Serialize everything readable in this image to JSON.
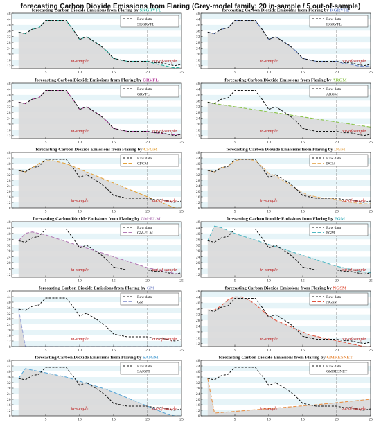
{
  "figure_title": "forecasting Carbon Dioxide Emissions from Flaring (Grey-model family; 20 in-sample / 5 out-of-sample)",
  "annotations": {
    "in_sample": "in-sample",
    "out_sample": "out-of-sample"
  },
  "colors": {
    "raw": "#111111",
    "fill": "#d9d9d9",
    "band": "#e6f4f8",
    "split": "#777777"
  },
  "chart_data": [
    {
      "type": "line",
      "title_prefix": "forecasting Carbon Dioxide Emissions from Flaring by ",
      "model": "SKGRVFL",
      "color": "#2bb3a0",
      "legend": [
        "Raw data",
        "SKGRVFL"
      ],
      "x": [
        1,
        2,
        3,
        4,
        5,
        6,
        7,
        8,
        9,
        10,
        11,
        12,
        13,
        14,
        15,
        16,
        17,
        18,
        19,
        20,
        21,
        22,
        23,
        24,
        25
      ],
      "raw": [
        35,
        34,
        37,
        38,
        43,
        43,
        43,
        43,
        37,
        30,
        32,
        29,
        26,
        22,
        17,
        16,
        15,
        15,
        15,
        15,
        14,
        14,
        13,
        12,
        13
      ],
      "fit": [
        35,
        34,
        37,
        38,
        43,
        43,
        43,
        43,
        37,
        30,
        32,
        29,
        26,
        22,
        17,
        16,
        15,
        15,
        15,
        15,
        13.5,
        12.5,
        11.5,
        10.5,
        11
      ],
      "xlim": [
        0,
        25
      ],
      "ylim": [
        10,
        48
      ],
      "yticks": [
        12,
        16,
        20,
        24,
        28,
        32,
        36,
        40,
        44,
        48
      ],
      "xticks": [
        5,
        10,
        15,
        20,
        25
      ],
      "split_at": 20
    },
    {
      "type": "line",
      "title_prefix": "forecasting Carbon Dioxide Emissions from Flaring by ",
      "model": "KGRVFL",
      "color": "#6a85c8",
      "legend": [
        "Raw data",
        "KGRVFL"
      ],
      "x": [
        1,
        2,
        3,
        4,
        5,
        6,
        7,
        8,
        9,
        10,
        11,
        12,
        13,
        14,
        15,
        16,
        17,
        18,
        19,
        20,
        21,
        22,
        23,
        24,
        25
      ],
      "raw": [
        35,
        34,
        37,
        38,
        43,
        43,
        43,
        43,
        37,
        30,
        32,
        29,
        26,
        22,
        17,
        16,
        15,
        15,
        15,
        15,
        14,
        14,
        13,
        12,
        13
      ],
      "fit": [
        35,
        34,
        37,
        38,
        43,
        43,
        43,
        43,
        37,
        30,
        32,
        29,
        26,
        22,
        17,
        16,
        15,
        15,
        15,
        15,
        13.5,
        13,
        12,
        11.5,
        12
      ],
      "xlim": [
        0,
        25
      ],
      "ylim": [
        10,
        48
      ],
      "yticks": [
        12,
        16,
        20,
        24,
        28,
        32,
        36,
        40,
        44,
        48
      ],
      "xticks": [
        5,
        10,
        15,
        20,
        25
      ],
      "split_at": 20
    },
    {
      "type": "line",
      "title_prefix": "forecasting Carbon Dioxide Emissions from Flaring by ",
      "model": "GRVFL",
      "color": "#b5439e",
      "legend": [
        "Raw data",
        "GRVFL"
      ],
      "x": [
        1,
        2,
        3,
        4,
        5,
        6,
        7,
        8,
        9,
        10,
        11,
        12,
        13,
        14,
        15,
        16,
        17,
        18,
        19,
        20,
        21,
        22,
        23,
        24,
        25
      ],
      "raw": [
        35,
        34,
        37,
        38,
        43,
        43,
        43,
        43,
        37,
        30,
        32,
        29,
        26,
        22,
        17,
        16,
        15,
        15,
        15,
        15,
        14,
        14,
        13,
        12,
        13
      ],
      "fit": [
        35,
        34,
        37,
        38,
        43,
        43,
        43,
        43,
        37,
        30,
        32,
        29,
        26,
        22,
        17,
        16,
        15,
        15,
        15,
        15,
        14,
        13.5,
        13,
        12.5,
        13
      ],
      "xlim": [
        0,
        25
      ],
      "ylim": [
        10,
        48
      ],
      "yticks": [
        12,
        16,
        20,
        24,
        28,
        32,
        36,
        40,
        44,
        48
      ],
      "xticks": [
        5,
        10,
        15,
        20,
        25
      ],
      "split_at": 20
    },
    {
      "type": "line",
      "title_prefix": "forecasting Carbon Dioxide Emissions from Flaring by ",
      "model": "ARGM",
      "color": "#8bc34a",
      "legend": [
        "Raw data",
        "ARGM"
      ],
      "x": [
        1,
        2,
        3,
        4,
        5,
        6,
        7,
        8,
        9,
        10,
        11,
        12,
        13,
        14,
        15,
        16,
        17,
        18,
        19,
        20,
        21,
        22,
        23,
        24,
        25
      ],
      "raw": [
        35,
        34,
        37,
        38,
        43,
        43,
        43,
        43,
        37,
        30,
        32,
        29,
        26,
        22,
        17,
        16,
        15,
        15,
        15,
        15,
        14,
        14,
        13,
        12,
        13
      ],
      "fit": [
        35,
        34,
        33.3,
        32.6,
        31.9,
        31.2,
        30.5,
        29.8,
        29.1,
        28.4,
        27.7,
        27,
        26.3,
        25.6,
        24.9,
        24.2,
        23.5,
        22.8,
        22.1,
        21.4,
        20.7,
        20,
        19.3,
        18.6,
        17.9
      ],
      "xlim": [
        0,
        25
      ],
      "ylim": [
        10,
        48
      ],
      "yticks": [
        12,
        16,
        20,
        24,
        28,
        32,
        36,
        40,
        44,
        48
      ],
      "xticks": [
        5,
        10,
        15,
        20,
        25
      ],
      "split_at": 20
    },
    {
      "type": "line",
      "title_prefix": "forecasting Carbon Dioxide Emissions from Flaring by ",
      "model": "CFGM",
      "color": "#e3a23b",
      "legend": [
        "Raw data",
        "CFGM"
      ],
      "x": [
        1,
        2,
        3,
        4,
        5,
        6,
        7,
        8,
        9,
        10,
        11,
        12,
        13,
        14,
        15,
        16,
        17,
        18,
        19,
        20,
        21,
        22,
        23,
        24,
        25
      ],
      "raw": [
        35,
        34,
        37,
        38,
        43,
        43,
        43,
        43,
        37,
        30,
        32,
        29,
        26,
        22,
        17,
        16,
        15,
        15,
        15,
        15,
        14,
        14,
        13,
        12,
        13
      ],
      "fit": [
        35,
        34,
        37,
        40,
        42,
        42,
        41,
        40,
        38,
        36,
        34,
        32,
        30,
        28,
        26,
        24,
        22,
        20,
        18,
        16,
        14,
        12,
        10,
        8,
        6
      ],
      "xlim": [
        0,
        25
      ],
      "ylim": [
        8,
        48
      ],
      "yticks": [
        8,
        12,
        16,
        20,
        24,
        28,
        32,
        36,
        40,
        44,
        48
      ],
      "xticks": [
        5,
        10,
        15,
        20,
        25
      ],
      "split_at": 20
    },
    {
      "type": "line",
      "title_prefix": "forecasting Carbon Dioxide Emissions from Flaring by ",
      "model": "DGM",
      "color": "#e8b46a",
      "legend": [
        "Raw data",
        "DGM"
      ],
      "x": [
        1,
        2,
        3,
        4,
        5,
        6,
        7,
        8,
        9,
        10,
        11,
        12,
        13,
        14,
        15,
        16,
        17,
        18,
        19,
        20,
        21,
        22,
        23,
        24,
        25
      ],
      "raw": [
        35,
        34,
        37,
        38,
        43,
        43,
        43,
        43,
        37,
        30,
        32,
        29,
        26,
        22,
        17,
        16,
        15,
        15,
        15,
        15,
        14,
        14,
        13,
        12,
        13
      ],
      "fit": [
        35,
        34,
        37,
        38,
        42,
        43,
        43,
        42,
        38,
        33,
        31,
        28,
        25,
        22,
        19,
        17,
        16,
        15,
        15,
        14,
        13,
        12,
        11.5,
        11,
        11
      ],
      "xlim": [
        0,
        25
      ],
      "ylim": [
        8,
        48
      ],
      "yticks": [
        8,
        12,
        16,
        20,
        24,
        28,
        32,
        36,
        40,
        44,
        48
      ],
      "xticks": [
        5,
        10,
        15,
        20,
        25
      ],
      "split_at": 20
    },
    {
      "type": "line",
      "title_prefix": "forecasting Carbon Dioxide Emissions from Flaring by ",
      "model": "GM-ELM",
      "color": "#b37bb6",
      "legend": [
        "Raw data",
        "GM-ELM"
      ],
      "x": [
        1,
        2,
        3,
        4,
        5,
        6,
        7,
        8,
        9,
        10,
        11,
        12,
        13,
        14,
        15,
        16,
        17,
        18,
        19,
        20,
        21,
        22,
        23,
        24,
        25
      ],
      "raw": [
        35,
        34,
        37,
        38,
        43,
        43,
        43,
        43,
        37,
        30,
        32,
        29,
        26,
        22,
        17,
        16,
        15,
        15,
        15,
        15,
        14,
        14,
        13,
        12,
        13
      ],
      "fit": [
        35,
        40,
        41,
        40,
        39,
        37.5,
        36,
        34.5,
        33,
        31.5,
        30,
        28.5,
        27,
        25.5,
        24,
        22.5,
        21,
        19.5,
        18,
        16.5,
        15.5,
        14.5,
        13.5,
        12.5,
        12
      ],
      "xlim": [
        0,
        25
      ],
      "ylim": [
        10,
        48
      ],
      "yticks": [
        12,
        16,
        20,
        24,
        28,
        32,
        36,
        40,
        44,
        48
      ],
      "xticks": [
        5,
        10,
        15,
        20,
        25
      ],
      "split_at": 20
    },
    {
      "type": "line",
      "title_prefix": "forecasting Carbon Dioxide Emissions from Flaring by ",
      "model": "FGM",
      "color": "#4fb7c2",
      "legend": [
        "Raw data",
        "FGM"
      ],
      "x": [
        1,
        2,
        3,
        4,
        5,
        6,
        7,
        8,
        9,
        10,
        11,
        12,
        13,
        14,
        15,
        16,
        17,
        18,
        19,
        20,
        21,
        22,
        23,
        24,
        25
      ],
      "raw": [
        35,
        34,
        37,
        38,
        43,
        43,
        43,
        43,
        37,
        30,
        32,
        29,
        26,
        22,
        17,
        16,
        15,
        15,
        15,
        15,
        14,
        14,
        13,
        12,
        13
      ],
      "fit": [
        35,
        45,
        44,
        42,
        40,
        38.5,
        37,
        35.5,
        34,
        32.5,
        31,
        29.5,
        28,
        26.5,
        25,
        23.5,
        22,
        20.5,
        19,
        17.5,
        16.5,
        15.5,
        14.5,
        13.5,
        13
      ],
      "xlim": [
        0,
        25
      ],
      "ylim": [
        10,
        48
      ],
      "yticks": [
        12,
        16,
        20,
        24,
        28,
        32,
        36,
        40,
        44,
        48
      ],
      "xticks": [
        5,
        10,
        15,
        20,
        25
      ],
      "split_at": 20
    },
    {
      "type": "line",
      "title_prefix": "forecasting Carbon Dioxide Emissions from Flaring by ",
      "model": "GM",
      "color": "#9aa4d6",
      "legend": [
        "Raw data",
        "GM"
      ],
      "x": [
        1,
        2,
        3,
        4,
        5,
        6,
        7,
        8,
        9,
        10,
        11,
        12,
        13,
        14,
        15,
        16,
        17,
        18,
        19,
        20,
        21,
        22,
        23,
        24,
        25
      ],
      "raw": [
        35,
        34,
        37,
        38,
        43,
        43,
        43,
        43,
        37,
        30,
        32,
        29,
        26,
        22,
        17,
        16,
        15,
        15,
        15,
        15,
        14,
        14,
        13,
        12,
        13
      ],
      "fit": [
        35,
        1,
        0.5,
        0.3,
        0.2,
        0.1,
        0.1,
        0.1,
        0.1,
        0.1,
        0.1,
        0.1,
        0.1,
        0.1,
        0.1,
        0.1,
        0.1,
        0.1,
        0.1,
        0.1,
        0.1,
        0.1,
        0.1,
        0.1,
        0.1
      ],
      "xlim": [
        0,
        25
      ],
      "ylim": [
        8,
        48
      ],
      "yticks": [
        8,
        12,
        16,
        20,
        24,
        28,
        32,
        36,
        40,
        44,
        48
      ],
      "xticks": [
        5,
        10,
        15,
        20,
        25
      ],
      "split_at": 20
    },
    {
      "type": "line",
      "title_prefix": "forecasting Carbon Dioxide Emissions from Flaring by ",
      "model": "NGSM",
      "color": "#e0533d",
      "legend": [
        "Raw data",
        "NGSM"
      ],
      "x": [
        1,
        2,
        3,
        4,
        5,
        6,
        7,
        8,
        9,
        10,
        11,
        12,
        13,
        14,
        15,
        16,
        17,
        18,
        19,
        20,
        21,
        22,
        23,
        24,
        25
      ],
      "raw": [
        35,
        34,
        37,
        38,
        43,
        43,
        43,
        43,
        37,
        30,
        32,
        29,
        26,
        22,
        17,
        16,
        15,
        15,
        15,
        15,
        14,
        14,
        13,
        12,
        13
      ],
      "fit": [
        35,
        35,
        38,
        42,
        44,
        44,
        42,
        39,
        35,
        31,
        28,
        26,
        24,
        22,
        20,
        18,
        17,
        16,
        15,
        14,
        13,
        12,
        11,
        10,
        9.5
      ],
      "xlim": [
        0,
        25
      ],
      "ylim": [
        10,
        48
      ],
      "yticks": [
        12,
        16,
        20,
        24,
        28,
        32,
        36,
        40,
        44,
        48
      ],
      "xticks": [
        5,
        10,
        15,
        20,
        25
      ],
      "split_at": 20
    },
    {
      "type": "line",
      "title_prefix": "forecasting Carbon Dioxide Emissions from Flaring by ",
      "model": "SAIGM",
      "color": "#5aa6d6",
      "legend": [
        "Raw data",
        "SAIGM"
      ],
      "x": [
        1,
        2,
        3,
        4,
        5,
        6,
        7,
        8,
        9,
        10,
        11,
        12,
        13,
        14,
        15,
        16,
        17,
        18,
        19,
        20,
        21,
        22,
        23,
        24,
        25
      ],
      "raw": [
        35,
        34,
        37,
        38,
        43,
        43,
        43,
        43,
        37,
        30,
        32,
        29,
        26,
        22,
        17,
        16,
        15,
        15,
        15,
        15,
        14,
        14,
        13,
        12,
        13
      ],
      "fit": [
        35,
        42,
        41,
        40,
        39,
        38,
        37,
        36,
        34.5,
        33,
        31.5,
        30,
        28.5,
        27,
        25,
        23,
        21,
        19,
        17,
        15,
        13,
        11,
        9,
        7,
        5
      ],
      "xlim": [
        0,
        25
      ],
      "ylim": [
        8,
        48
      ],
      "yticks": [
        8,
        12,
        16,
        20,
        24,
        28,
        32,
        36,
        40,
        44,
        48
      ],
      "xticks": [
        5,
        10,
        15,
        20,
        25
      ],
      "split_at": 20
    },
    {
      "type": "line",
      "title_prefix": "forecasting Carbon Dioxide Emissions from Flaring by ",
      "model": "GMRESNET",
      "color": "#e8924a",
      "legend": [
        "Raw data",
        "GMRESNET"
      ],
      "x": [
        1,
        2,
        3,
        4,
        5,
        6,
        7,
        8,
        9,
        10,
        11,
        12,
        13,
        14,
        15,
        16,
        17,
        18,
        19,
        20,
        21,
        22,
        23,
        24,
        25
      ],
      "raw": [
        35,
        34,
        37,
        38,
        43,
        43,
        43,
        43,
        37,
        30,
        32,
        29,
        26,
        22,
        17,
        16,
        15,
        15,
        15,
        15,
        14,
        14,
        13,
        12,
        13
      ],
      "fit": [
        35,
        10,
        10.4,
        10.8,
        11.2,
        11.6,
        12,
        12.4,
        12.8,
        13.2,
        13.6,
        14,
        14.4,
        14.8,
        15.2,
        15.6,
        16,
        16.5,
        17,
        17.5,
        18,
        18.5,
        19,
        19.5,
        20
      ],
      "xlim": [
        0,
        25
      ],
      "ylim": [
        8,
        48
      ],
      "yticks": [
        8,
        12,
        16,
        20,
        24,
        28,
        32,
        36,
        40,
        44,
        48
      ],
      "xticks": [
        5,
        10,
        15,
        20,
        25
      ],
      "split_at": 20
    }
  ]
}
